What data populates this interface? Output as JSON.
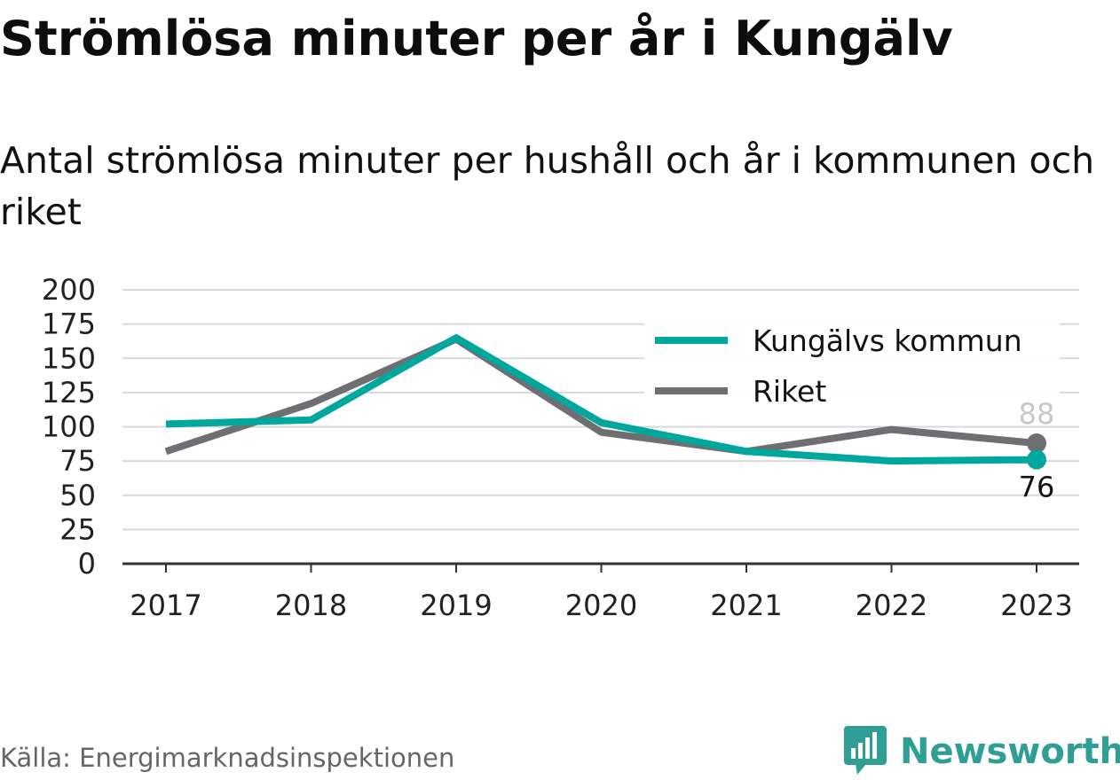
{
  "title": "Strömlösa minuter per år i Kungälv",
  "subtitle": "Antal strömlösa minuter per hushåll och år i kommunen och riket",
  "source": "Källa: Energimarknadsinspektionen",
  "brand": "Newsworthy",
  "colors": {
    "kungalv": "#00a79d",
    "riket": "#6f6e73",
    "grid": "#d9d9d9",
    "axis": "#333333",
    "brand": "#2f9e94"
  },
  "icons": {
    "brand_logo": "bar-chart-speech-bubble-icon"
  },
  "chart_data": {
    "type": "line",
    "x": [
      "2017",
      "2018",
      "2019",
      "2020",
      "2021",
      "2022",
      "2023"
    ],
    "series": [
      {
        "name": "Kungälvs kommun",
        "values": [
          102,
          105,
          165,
          103,
          82,
          75,
          76
        ],
        "end_label": "76"
      },
      {
        "name": "Riket",
        "values": [
          82,
          117,
          164,
          96,
          82,
          98,
          88
        ],
        "end_label": "88"
      }
    ],
    "yticks": [
      "0",
      "25",
      "50",
      "75",
      "100",
      "125",
      "150",
      "175",
      "200"
    ],
    "ylim": [
      0,
      200
    ],
    "xlabel": "",
    "ylabel": "",
    "grid": true,
    "legend_position": "top-right"
  }
}
